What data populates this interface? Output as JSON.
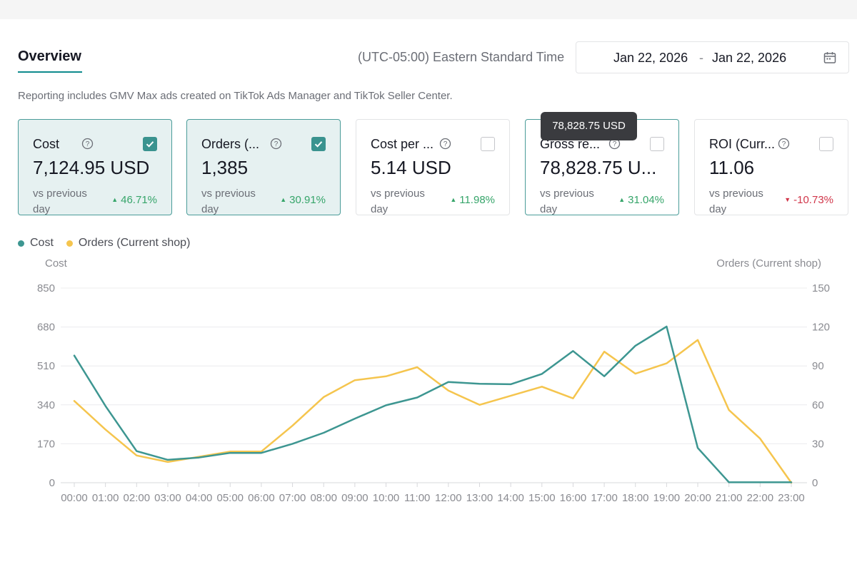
{
  "header": {
    "tab_label": "Overview",
    "timezone": "(UTC-05:00) Eastern Standard Time",
    "date_start": "Jan 22, 2026",
    "date_separator": "-",
    "date_end": "Jan 22, 2026"
  },
  "reporting_note": "Reporting includes GMV Max ads created on TikTok Ads Manager and TikTok Seller Center.",
  "tooltip": "78,828.75 USD",
  "cards": [
    {
      "title": "Cost",
      "value": "7,124.95 USD",
      "vs_label": "vs previous day",
      "delta": "46.71%",
      "trend": "up",
      "checked": true
    },
    {
      "title": "Orders (...",
      "value": "1,385",
      "vs_label": "vs previous day",
      "delta": "30.91%",
      "trend": "up",
      "checked": true
    },
    {
      "title": "Cost per ...",
      "value": "5.14 USD",
      "vs_label": "vs previous day",
      "delta": "11.98%",
      "trend": "up",
      "checked": false
    },
    {
      "title": "Gross re...",
      "value": "78,828.75 U...",
      "vs_label": "vs previous day",
      "delta": "31.04%",
      "trend": "up",
      "checked": false
    },
    {
      "title": "ROI (Curr...",
      "value": "11.06",
      "vs_label": "vs previous day",
      "delta": "-10.73%",
      "trend": "down",
      "checked": false
    }
  ],
  "colors": {
    "accent": "#3a938f",
    "cost_series": "#3d9691",
    "orders_series": "#f5c54e",
    "up": "#36a56a",
    "down": "#d1364a"
  },
  "chart_data": {
    "type": "line",
    "legend": [
      "Cost",
      "Orders (Current shop)"
    ],
    "left_axis_label": "Cost",
    "right_axis_label": "Orders (Current shop)",
    "x": [
      "00:00",
      "01:00",
      "02:00",
      "03:00",
      "04:00",
      "05:00",
      "06:00",
      "07:00",
      "08:00",
      "09:00",
      "10:00",
      "11:00",
      "12:00",
      "13:00",
      "14:00",
      "15:00",
      "16:00",
      "17:00",
      "18:00",
      "19:00",
      "20:00",
      "21:00",
      "22:00",
      "23:00"
    ],
    "left_ticks": [
      0,
      170,
      340,
      510,
      680,
      850
    ],
    "right_ticks": [
      0,
      30,
      60,
      90,
      120,
      150
    ],
    "left_range": [
      0,
      850
    ],
    "right_range": [
      0,
      150
    ],
    "series": [
      {
        "name": "Cost",
        "axis": "left",
        "values": [
          555,
          335,
          138,
          100,
          110,
          130,
          130,
          170,
          218,
          280,
          338,
          372,
          440,
          432,
          430,
          475,
          575,
          465,
          598,
          682,
          152,
          2,
          2,
          2
        ]
      },
      {
        "name": "Orders (Current shop)",
        "axis": "right",
        "values": [
          63,
          41,
          21,
          16,
          20,
          24,
          24,
          44,
          66,
          79,
          82,
          89,
          71,
          60,
          67,
          74,
          65,
          101,
          84,
          92,
          110,
          56,
          34,
          0
        ]
      }
    ]
  }
}
